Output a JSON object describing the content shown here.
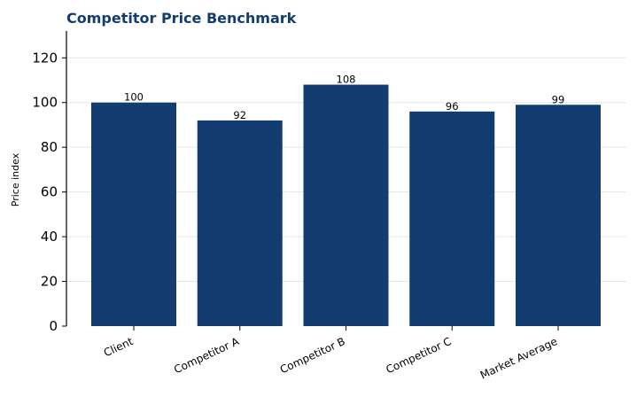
{
  "chart_data": {
    "type": "bar",
    "title": "Competitor Price Benchmark",
    "xlabel": "",
    "ylabel": "Price index",
    "categories": [
      "Client",
      "Competitor A",
      "Competitor B",
      "Competitor C",
      "Market Average"
    ],
    "values": [
      100,
      92,
      108,
      96,
      99
    ],
    "data_labels": [
      "100",
      "92",
      "108",
      "96",
      "99"
    ],
    "yticks": [
      0,
      20,
      40,
      60,
      80,
      100,
      120
    ],
    "ylim": [
      0,
      132
    ],
    "grid": true,
    "bar_color": "#133d70",
    "title_color": "#133d70",
    "grid_color": "#e6e6e6"
  }
}
